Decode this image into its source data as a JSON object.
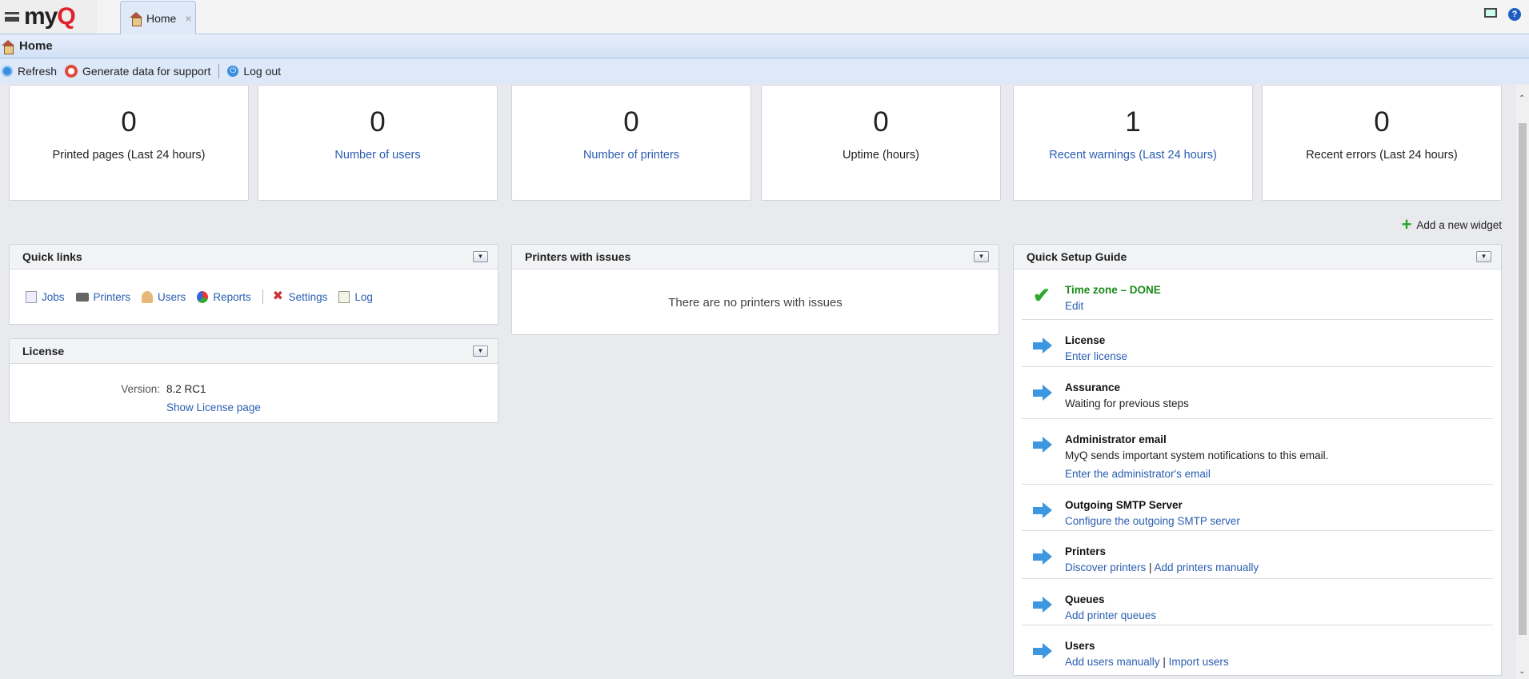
{
  "app": {
    "logo": "myQ",
    "tab": "Home",
    "tab_close": "×"
  },
  "header": {
    "title": "Home"
  },
  "toolbar": {
    "refresh": "Refresh",
    "support": "Generate data for support",
    "logout": "Log out"
  },
  "stats": [
    {
      "value": "0",
      "label": "Printed pages (Last 24 hours)",
      "link": false
    },
    {
      "value": "0",
      "label": "Number of users",
      "link": true
    },
    {
      "value": "0",
      "label": "Number of printers",
      "link": true
    },
    {
      "value": "0",
      "label": "Uptime (hours)",
      "link": false
    },
    {
      "value": "1",
      "label": "Recent warnings (Last 24 hours)",
      "link": true
    },
    {
      "value": "0",
      "label": "Recent errors (Last 24 hours)",
      "link": false
    }
  ],
  "add_widget": "Add a new widget",
  "quick_links": {
    "title": "Quick links",
    "items": [
      "Jobs",
      "Printers",
      "Users",
      "Reports",
      "Settings",
      "Log"
    ]
  },
  "license": {
    "title": "License",
    "version_label": "Version:",
    "version": "8.2 RC1",
    "link": "Show License page"
  },
  "printers_issues": {
    "title": "Printers with issues",
    "empty": "There are no printers with issues"
  },
  "setup": {
    "title": "Quick Setup Guide",
    "steps": [
      {
        "title": "Time zone – DONE",
        "status": "done",
        "links": [
          "Edit"
        ]
      },
      {
        "title": "License",
        "status": "todo",
        "links": [
          "Enter license"
        ]
      },
      {
        "title": "Assurance",
        "status": "todo",
        "text": "Waiting for previous steps"
      },
      {
        "title": "Administrator email",
        "status": "todo",
        "text": "MyQ sends important system notifications to this email.",
        "links": [
          "Enter the administrator's email"
        ]
      },
      {
        "title": "Outgoing SMTP Server",
        "status": "todo",
        "links": [
          "Configure the outgoing SMTP server"
        ]
      },
      {
        "title": "Printers",
        "status": "todo",
        "links": [
          "Discover printers",
          "Add printers manually"
        ]
      },
      {
        "title": "Queues",
        "status": "todo",
        "links": [
          "Add printer queues"
        ]
      },
      {
        "title": "Users",
        "status": "todo",
        "links": [
          "Add users manually",
          "Import users"
        ]
      }
    ]
  },
  "colors": {
    "link": "#2a5db0",
    "done": "#1a8a1a",
    "accent": "#e0202a"
  }
}
